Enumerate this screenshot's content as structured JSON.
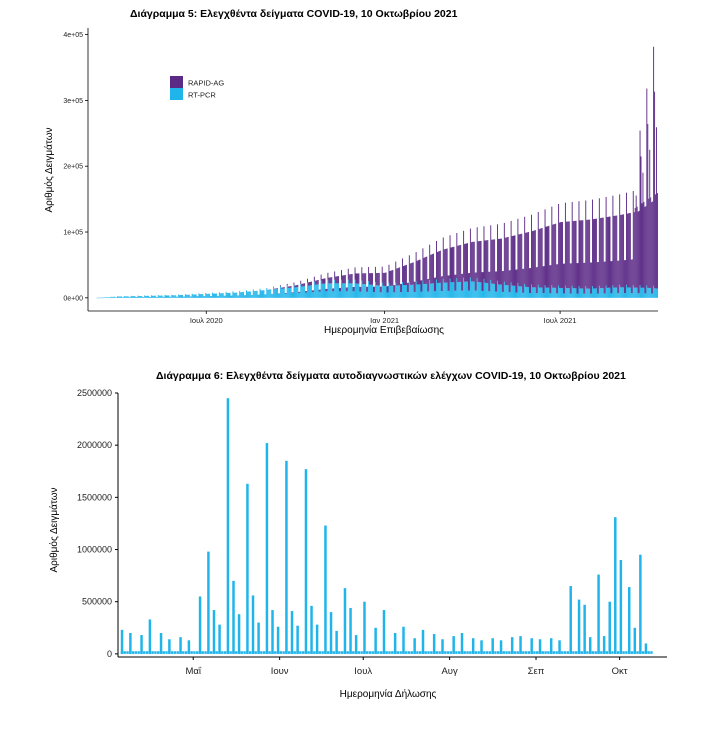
{
  "chart_data": [
    {
      "type": "bar",
      "stacked": true,
      "title": "Διάγραμμα 5: Ελεγχθέντα δείγματα COVID-19, 10 Οκτωβρίου 2021",
      "xlabel": "Ημερομηνία Επιβεβαίωσης",
      "ylabel": "Αριθμός Δειγμάτων",
      "y_ticks": [
        "0e+00",
        "1e+05",
        "2e+05",
        "3e+05",
        "4e+05"
      ],
      "y_tick_values": [
        0,
        100000,
        200000,
        300000,
        400000
      ],
      "ylim": [
        -20000,
        410000
      ],
      "x_ticks": [
        "Ιουλ 2020",
        "Ιαν 2021",
        "Ιουλ 2021"
      ],
      "x_tick_dates": [
        "2020-07-01",
        "2021-01-01",
        "2021-07-01"
      ],
      "x_range": [
        "2020-03-01",
        "2021-10-10"
      ],
      "grid": false,
      "legend_position": "top-left",
      "series": [
        {
          "name": "RAPID-AG",
          "color": "#5B2A86"
        },
        {
          "name": "RT-PCR",
          "color": "#1FB5EA"
        }
      ],
      "x": [
        "2020-04-01",
        "2020-05-01",
        "2020-06-01",
        "2020-07-01",
        "2020-08-01",
        "2020-09-01",
        "2020-10-01",
        "2020-11-01",
        "2020-12-01",
        "2021-01-01",
        "2021-02-01",
        "2021-03-01",
        "2021-04-01",
        "2021-05-01",
        "2021-06-01",
        "2021-07-01",
        "2021-08-01",
        "2021-09-01",
        "2021-10-01",
        "2021-10-10"
      ],
      "rt_pcr_typical": [
        2000,
        3000,
        4000,
        6000,
        8000,
        12000,
        16000,
        22000,
        22000,
        18000,
        20000,
        23000,
        25000,
        20000,
        16000,
        15000,
        14000,
        16000,
        15000,
        14000
      ],
      "rapid_ag_typical": [
        0,
        0,
        0,
        0,
        0,
        0,
        3000,
        8000,
        15000,
        20000,
        35000,
        50000,
        60000,
        70000,
        85000,
        100000,
        105000,
        110000,
        120000,
        140000
      ],
      "rapid_ag_peak": 400000
    },
    {
      "type": "bar",
      "title": "Διάγραμμα 6: Ελεγχθέντα δείγματα αυτοδιαγνωστικών ελέγχων COVID-19, 10 Οκτωβρίου 2021",
      "xlabel": "Ημερομηνία Δήλωσης",
      "ylabel": "Αριθμός Δειγμάτων",
      "y_ticks": [
        "0",
        "500000",
        "1000000",
        "1500000",
        "2000000",
        "2500000"
      ],
      "y_tick_values": [
        0,
        500000,
        1000000,
        1500000,
        2000000,
        2500000
      ],
      "ylim": [
        -30000,
        2500000
      ],
      "x_ticks": [
        "Μαΐ",
        "Ιουν",
        "Ιουλ",
        "Αυγ",
        "Σεπ",
        "Οκτ"
      ],
      "x_tick_dates": [
        "2021-05-01",
        "2021-06-01",
        "2021-07-01",
        "2021-08-01",
        "2021-09-01",
        "2021-10-01"
      ],
      "x_range": [
        "2021-04-04",
        "2021-10-18"
      ],
      "grid": false,
      "series": [
        {
          "color": "#1FB5EA"
        }
      ],
      "dates": [
        "2021-04-05",
        "2021-04-08",
        "2021-04-12",
        "2021-04-15",
        "2021-04-19",
        "2021-04-22",
        "2021-04-26",
        "2021-04-29",
        "2021-05-03",
        "2021-05-06",
        "2021-05-08",
        "2021-05-10",
        "2021-05-13",
        "2021-05-15",
        "2021-05-17",
        "2021-05-20",
        "2021-05-22",
        "2021-05-24",
        "2021-05-27",
        "2021-05-29",
        "2021-05-31",
        "2021-06-03",
        "2021-06-05",
        "2021-06-07",
        "2021-06-10",
        "2021-06-12",
        "2021-06-14",
        "2021-06-17",
        "2021-06-19",
        "2021-06-21",
        "2021-06-24",
        "2021-06-26",
        "2021-06-28",
        "2021-07-01",
        "2021-07-05",
        "2021-07-08",
        "2021-07-12",
        "2021-07-15",
        "2021-07-19",
        "2021-07-22",
        "2021-07-26",
        "2021-07-29",
        "2021-08-02",
        "2021-08-05",
        "2021-08-09",
        "2021-08-12",
        "2021-08-16",
        "2021-08-19",
        "2021-08-23",
        "2021-08-26",
        "2021-08-30",
        "2021-09-02",
        "2021-09-06",
        "2021-09-09",
        "2021-09-13",
        "2021-09-16",
        "2021-09-18",
        "2021-09-20",
        "2021-09-23",
        "2021-09-25",
        "2021-09-27",
        "2021-09-29",
        "2021-10-01",
        "2021-10-04",
        "2021-10-06",
        "2021-10-08",
        "2021-10-10"
      ],
      "values": [
        230000,
        200000,
        180000,
        330000,
        200000,
        140000,
        160000,
        130000,
        550000,
        980000,
        420000,
        280000,
        2450000,
        700000,
        380000,
        1630000,
        560000,
        300000,
        2020000,
        420000,
        260000,
        1850000,
        410000,
        270000,
        1770000,
        460000,
        280000,
        1230000,
        400000,
        220000,
        630000,
        440000,
        180000,
        500000,
        250000,
        420000,
        200000,
        260000,
        150000,
        230000,
        190000,
        140000,
        170000,
        200000,
        150000,
        130000,
        150000,
        130000,
        160000,
        170000,
        150000,
        140000,
        150000,
        130000,
        650000,
        520000,
        470000,
        160000,
        760000,
        170000,
        500000,
        1310000,
        900000,
        640000,
        250000,
        950000,
        100000
      ],
      "baseline": 25000
    }
  ]
}
